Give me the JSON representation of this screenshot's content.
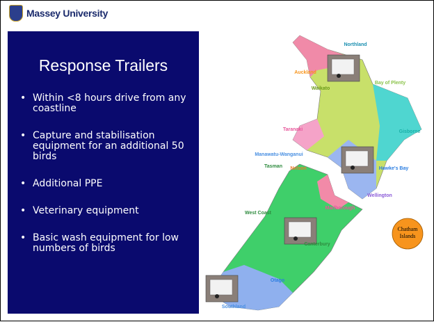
{
  "header": {
    "logo_text": "Massey University"
  },
  "slide": {
    "title": "Response Trailers",
    "bullets": [
      "Within <8 hours drive from any coastline",
      "Capture and stabilisation equipment for an additional 50 birds",
      "Additional PPE",
      "Veterinary equipment",
      "Basic wash equipment for low numbers of birds"
    ]
  },
  "map": {
    "regions": [
      "Northland",
      "Auckland",
      "Bay of Plenty",
      "Waikato",
      "Gisborne",
      "Taranaki",
      "Hawke's Bay",
      "Manawatu-Wanganui",
      "Tasman",
      "Nelson",
      "Wellington",
      "Marlborough",
      "West Coast",
      "Canterbury",
      "Otago",
      "Southland"
    ],
    "island_note": [
      "Chatham",
      "Islands"
    ]
  }
}
